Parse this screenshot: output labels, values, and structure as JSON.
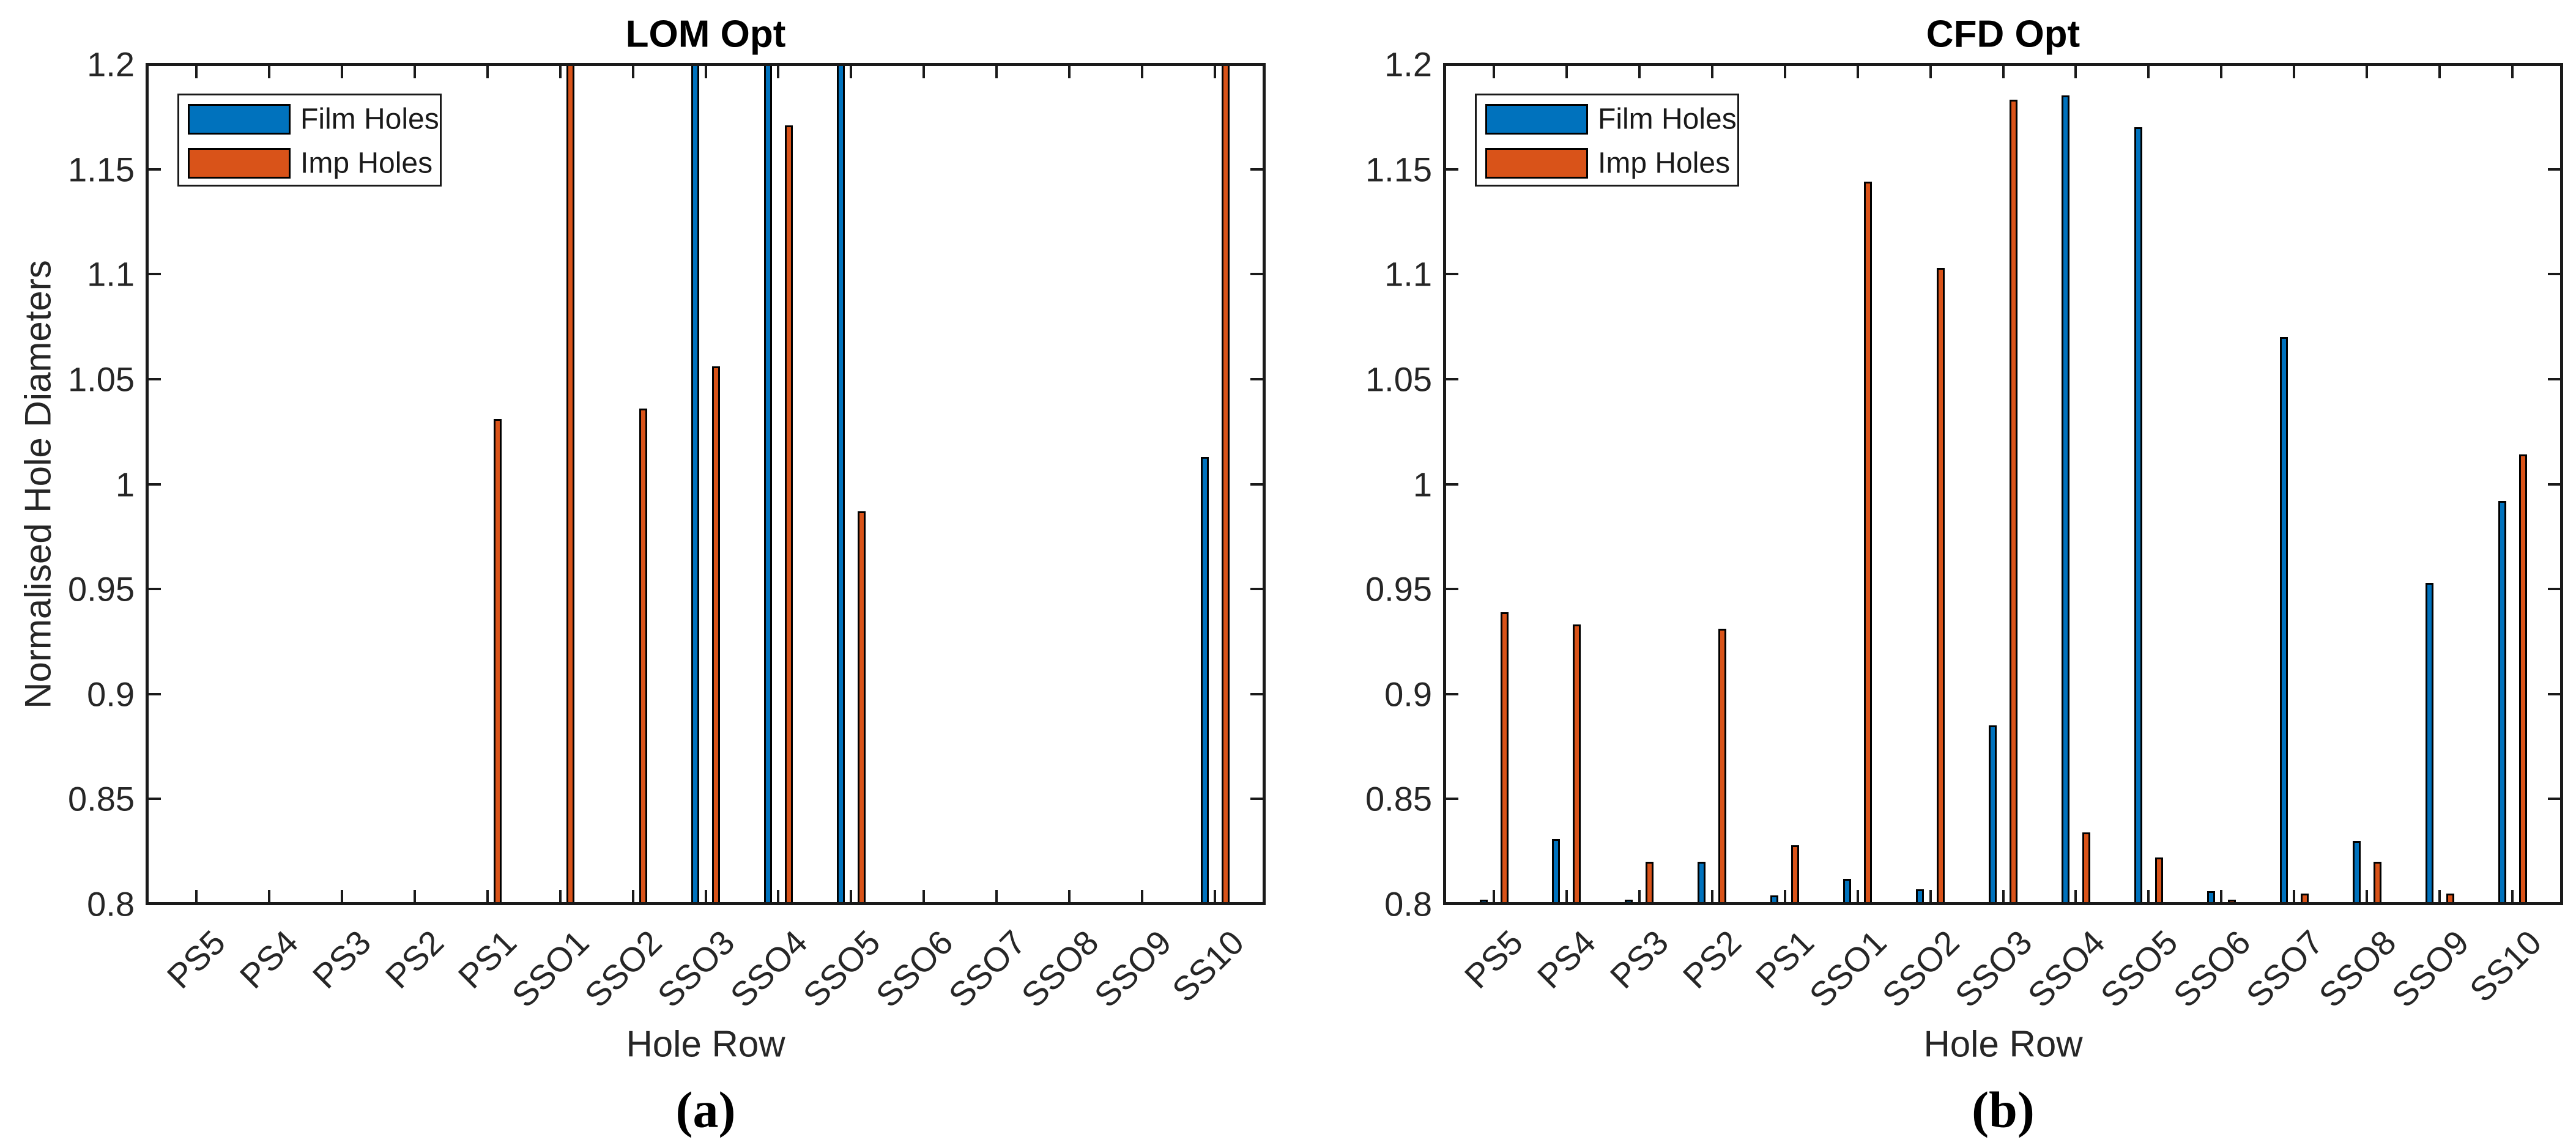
{
  "page": {
    "background": "#ffffff"
  },
  "styles": {
    "film_color": "#0072BD",
    "imp_color": "#D95319",
    "bar_edge_color": "#000000",
    "axis_color": "#1a1a1a",
    "tick_label_color": "#262626",
    "title_color": "#000000"
  },
  "chart_data": [
    {
      "type": "bar",
      "panel_caption": "(a)",
      "title": "LOM Opt",
      "xlabel": "Hole Row",
      "ylabel": "Normalised Hole Diameters",
      "ylim": [
        0.8,
        1.2
      ],
      "ytick_values": [
        0.8,
        0.85,
        0.9,
        0.95,
        1.0,
        1.05,
        1.1,
        1.15,
        1.2
      ],
      "ytick_labels": [
        "0.8",
        "0.85",
        "0.9",
        "0.95",
        "1",
        "1.05",
        "1.1",
        "1.15",
        "1.2"
      ],
      "categories": [
        "PS5",
        "PS4",
        "PS3",
        "PS2",
        "PS1",
        "SSO1",
        "SSO2",
        "SSO3",
        "SSO4",
        "SSO5",
        "SSO6",
        "SSO7",
        "SSO8",
        "SSO9",
        "SS10"
      ],
      "legend": {
        "position": "northwest",
        "entries": [
          {
            "label": "Film Holes",
            "color": "#0072BD"
          },
          {
            "label": "Imp Holes",
            "color": "#D95319"
          }
        ]
      },
      "series": [
        {
          "name": "Film Holes",
          "color": "#0072BD",
          "values": [
            null,
            null,
            null,
            null,
            null,
            null,
            null,
            ">1.2",
            ">1.2",
            ">1.2",
            null,
            null,
            null,
            null,
            1.013
          ]
        },
        {
          "name": "Imp Holes",
          "color": "#D95319",
          "values": [
            null,
            null,
            null,
            null,
            1.031,
            ">1.2",
            1.036,
            1.056,
            1.171,
            0.987,
            null,
            null,
            null,
            null,
            ">1.2"
          ]
        }
      ],
      "notes": "Values \">1.2\" are bars clipped by the axis top; null bars lie at/below the 0.8 axis minimum.",
      "grid": false
    },
    {
      "type": "bar",
      "panel_caption": "(b)",
      "title": "CFD Opt",
      "xlabel": "Hole Row",
      "ylabel": "",
      "ylim": [
        0.8,
        1.2
      ],
      "ytick_values": [
        0.8,
        0.85,
        0.9,
        0.95,
        1.0,
        1.05,
        1.1,
        1.15,
        1.2
      ],
      "ytick_labels": [
        "0.8",
        "0.85",
        "0.9",
        "0.95",
        "1",
        "1.05",
        "1.1",
        "1.15",
        "1.2"
      ],
      "categories": [
        "PS5",
        "PS4",
        "PS3",
        "PS2",
        "PS1",
        "SSO1",
        "SSO2",
        "SSO3",
        "SSO4",
        "SSO5",
        "SSO6",
        "SSO7",
        "SSO8",
        "SSO9",
        "SS10"
      ],
      "legend": {
        "position": "northwest",
        "entries": [
          {
            "label": "Film Holes",
            "color": "#0072BD"
          },
          {
            "label": "Imp Holes",
            "color": "#D95319"
          }
        ]
      },
      "series": [
        {
          "name": "Film Holes",
          "color": "#0072BD",
          "values": [
            0.801,
            0.831,
            0.801,
            0.82,
            0.804,
            0.812,
            0.807,
            0.885,
            1.185,
            1.17,
            0.806,
            1.07,
            0.83,
            0.953,
            0.992
          ]
        },
        {
          "name": "Imp Holes",
          "color": "#D95319",
          "values": [
            0.939,
            0.933,
            0.82,
            0.931,
            0.828,
            1.144,
            1.103,
            1.183,
            0.834,
            0.822,
            0.801,
            0.805,
            0.82,
            0.805,
            1.014
          ]
        }
      ],
      "notes": "",
      "grid": false
    }
  ]
}
